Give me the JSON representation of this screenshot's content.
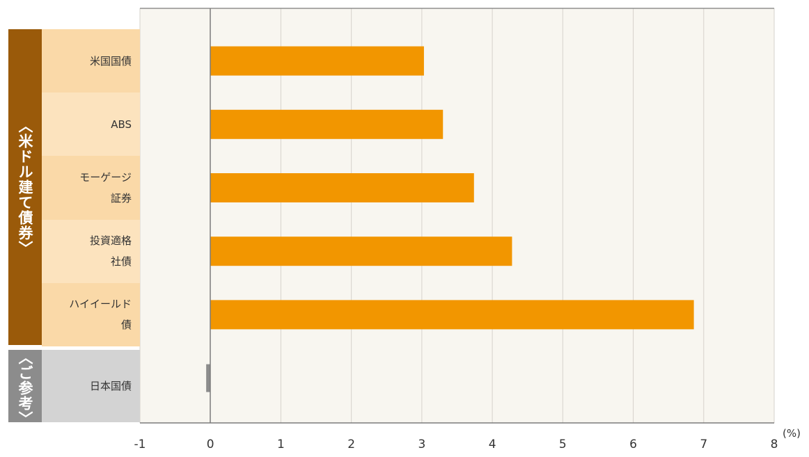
{
  "chart_data": {
    "type": "bar",
    "orientation": "horizontal",
    "categories": [
      "米国国債",
      "ABS",
      "モーゲージ\n証券",
      "投資適格\n社債",
      "ハイイールド\n債",
      "日本国債"
    ],
    "values": [
      3.03,
      3.3,
      3.74,
      4.28,
      6.86,
      -0.06
    ],
    "groups": [
      {
        "label": "〈米ドル建て債券〉",
        "categories": [
          "米国国債",
          "ABS",
          "モーゲージ\n証券",
          "投資適格\n社債",
          "ハイイールド\n債"
        ]
      },
      {
        "label": "〈ご参考〉",
        "categories": [
          "日本国債"
        ]
      }
    ],
    "xlim": [
      -1,
      8
    ],
    "xticks": [
      "-1",
      "0",
      "1",
      "2",
      "3",
      "4",
      "5",
      "6",
      "7",
      "8"
    ],
    "unit": "(%)",
    "grid": true,
    "colors": {
      "main_bar": "#F29600",
      "ref_bar": "#8C8C8C",
      "group_main": "#9A5A0A",
      "group_ref": "#8C8C8C",
      "cat_light": "#FAD9A8",
      "cat_alt": "#FCE3BE",
      "cat_ref": "#D3D3D3",
      "plot_bg": "#F8F6F0"
    }
  }
}
